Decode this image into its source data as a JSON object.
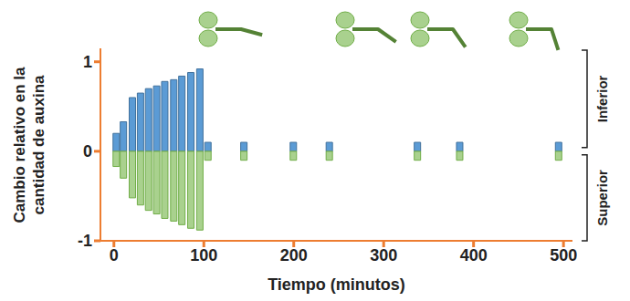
{
  "chart_data": {
    "type": "bar",
    "x_label": "Tiempo (minutos)",
    "y_label": "Cambio relativo en la cantidad de auxina",
    "x": [
      3,
      11,
      21,
      30,
      39,
      48,
      57,
      67,
      76,
      86,
      96,
      105,
      145,
      200,
      240,
      338,
      385,
      495
    ],
    "series": [
      {
        "name": "Inferior",
        "color": "#5b9bd5",
        "values": [
          0.2,
          0.33,
          0.6,
          0.65,
          0.7,
          0.73,
          0.78,
          0.8,
          0.84,
          0.88,
          0.92,
          0.1,
          0.1,
          0.1,
          0.1,
          0.1,
          0.1,
          0.1
        ]
      },
      {
        "name": "Superior",
        "color": "#a9d18e",
        "values": [
          -0.17,
          -0.3,
          -0.52,
          -0.6,
          -0.66,
          -0.7,
          -0.75,
          -0.78,
          -0.82,
          -0.86,
          -0.88,
          -0.1,
          -0.1,
          -0.1,
          -0.1,
          -0.1,
          -0.1,
          -0.1
        ]
      }
    ],
    "xlim": [
      -15,
      510
    ],
    "xticks": [
      0,
      100,
      200,
      300,
      400,
      500
    ],
    "ylim": [
      -1,
      1.15
    ],
    "yticks": [
      -1,
      0,
      1
    ],
    "stacked": true
  }
}
